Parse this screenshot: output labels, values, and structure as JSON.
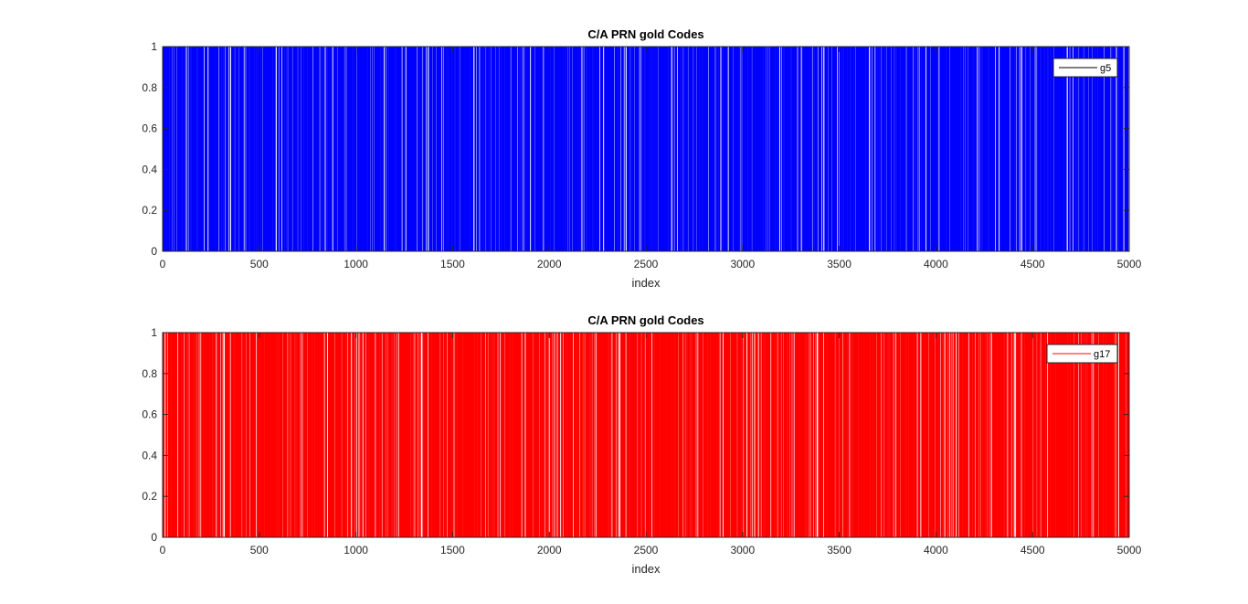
{
  "figure": {
    "background": "#ffffff",
    "axis_color": "#262626"
  },
  "chart_data": [
    {
      "type": "line",
      "render": "stairs",
      "title": "C/A PRN gold Codes",
      "xlabel": "index",
      "ylabel": "",
      "xlim": [
        0,
        5000
      ],
      "ylim": [
        0,
        1
      ],
      "xticks": [
        0,
        500,
        1000,
        1500,
        2000,
        2500,
        3000,
        3500,
        4000,
        4500,
        5000
      ],
      "yticks": [
        0,
        0.2,
        0.4,
        0.6,
        0.8,
        1
      ],
      "xtick_labels": [
        "0",
        "500",
        "1000",
        "1500",
        "2000",
        "2500",
        "3000",
        "3500",
        "4000",
        "4500",
        "5000"
      ],
      "ytick_labels": [
        "0",
        "0.2",
        "0.4",
        "0.6",
        "0.8",
        "1"
      ],
      "grid": false,
      "legend_position": "top-right",
      "series": [
        {
          "name": "g5",
          "color": "#0000ff",
          "legend_line_color": "#000000",
          "prn": 5,
          "values": "binary 0/1 C/A gold code sequence of length 1023, repeated over index 0-5000"
        }
      ]
    },
    {
      "type": "line",
      "render": "stairs",
      "title": "C/A PRN gold Codes",
      "xlabel": "index",
      "ylabel": "",
      "xlim": [
        0,
        5000
      ],
      "ylim": [
        0,
        1
      ],
      "xticks": [
        0,
        500,
        1000,
        1500,
        2000,
        2500,
        3000,
        3500,
        4000,
        4500,
        5000
      ],
      "yticks": [
        0,
        0.2,
        0.4,
        0.6,
        0.8,
        1
      ],
      "xtick_labels": [
        "0",
        "500",
        "1000",
        "1500",
        "2000",
        "2500",
        "3000",
        "3500",
        "4000",
        "4500",
        "5000"
      ],
      "ytick_labels": [
        "0",
        "0.2",
        "0.4",
        "0.6",
        "0.8",
        "1"
      ],
      "grid": false,
      "legend_position": "top-right",
      "series": [
        {
          "name": "g17",
          "color": "#ff0000",
          "legend_line_color": "#ff0000",
          "prn": 17,
          "values": "binary 0/1 C/A gold code sequence of length 1023, repeated over index 0-5000"
        }
      ]
    }
  ]
}
